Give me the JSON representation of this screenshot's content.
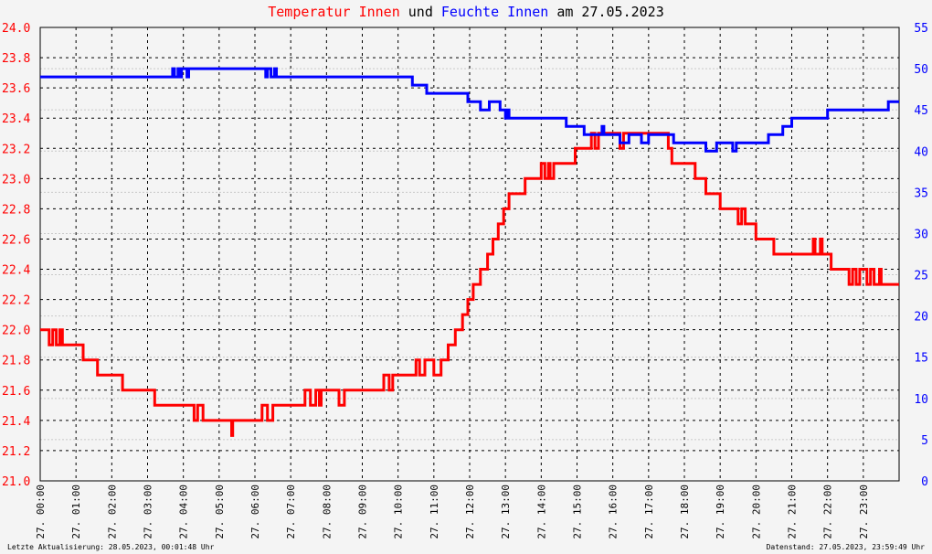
{
  "title": {
    "part1": "Temperatur Innen",
    "part2": " und ",
    "part3": "Feuchte Innen",
    "part4": " am 27.05.2023"
  },
  "colors": {
    "temperature": "#ff0000",
    "humidity": "#0000ff",
    "background": "#f4f4f4",
    "grid": "#000000"
  },
  "footer": {
    "left": "Letzte Aktualisierung: 28.05.2023, 00:01:48 Uhr",
    "right": "Datenstand: 27.05.2023, 23:59:49 Uhr"
  },
  "chart_data": {
    "type": "line",
    "title": "Temperatur Innen und Feuchte Innen am 27.05.2023",
    "xlabel": "",
    "ylabel": "",
    "x_range_hours": [
      0,
      24
    ],
    "x_ticks": [
      "27. 00:00",
      "27. 01:00",
      "27. 02:00",
      "27. 03:00",
      "27. 04:00",
      "27. 05:00",
      "27. 06:00",
      "27. 07:00",
      "27. 08:00",
      "27. 09:00",
      "27. 10:00",
      "27. 11:00",
      "27. 12:00",
      "27. 13:00",
      "27. 14:00",
      "27. 15:00",
      "27. 16:00",
      "27. 17:00",
      "27. 18:00",
      "27. 19:00",
      "27. 20:00",
      "27. 21:00",
      "27. 22:00",
      "27. 23:00"
    ],
    "y_left": {
      "range": [
        21.0,
        24.0
      ],
      "ticks": [
        "21.0",
        "21.2",
        "21.4",
        "21.6",
        "21.8",
        "22.0",
        "22.2",
        "22.4",
        "22.6",
        "22.8",
        "23.0",
        "23.2",
        "23.4",
        "23.6",
        "23.8",
        "24.0"
      ]
    },
    "y_right": {
      "range": [
        0,
        55
      ],
      "ticks": [
        "0",
        "5",
        "10",
        "15",
        "20",
        "25",
        "30",
        "35",
        "40",
        "45",
        "50",
        "55"
      ]
    },
    "grid": true,
    "series": [
      {
        "axis": "left",
        "points": [
          [
            0.0,
            22.0
          ],
          [
            0.25,
            22.0
          ],
          [
            0.25,
            21.9
          ],
          [
            0.35,
            21.9
          ],
          [
            0.35,
            22.0
          ],
          [
            0.45,
            22.0
          ],
          [
            0.45,
            21.9
          ],
          [
            0.55,
            21.9
          ],
          [
            0.55,
            22.0
          ],
          [
            0.62,
            22.0
          ],
          [
            0.62,
            21.9
          ],
          [
            1.2,
            21.9
          ],
          [
            1.2,
            21.8
          ],
          [
            1.6,
            21.8
          ],
          [
            1.6,
            21.7
          ],
          [
            2.3,
            21.7
          ],
          [
            2.3,
            21.6
          ],
          [
            3.2,
            21.6
          ],
          [
            3.2,
            21.5
          ],
          [
            4.3,
            21.5
          ],
          [
            4.3,
            21.4
          ],
          [
            4.4,
            21.4
          ],
          [
            4.4,
            21.5
          ],
          [
            4.55,
            21.5
          ],
          [
            4.55,
            21.4
          ],
          [
            5.35,
            21.4
          ],
          [
            5.35,
            21.3
          ],
          [
            5.38,
            21.3
          ],
          [
            5.38,
            21.4
          ],
          [
            6.2,
            21.4
          ],
          [
            6.2,
            21.5
          ],
          [
            6.35,
            21.5
          ],
          [
            6.35,
            21.4
          ],
          [
            6.5,
            21.4
          ],
          [
            6.5,
            21.5
          ],
          [
            7.4,
            21.5
          ],
          [
            7.4,
            21.6
          ],
          [
            7.55,
            21.6
          ],
          [
            7.55,
            21.5
          ],
          [
            7.7,
            21.5
          ],
          [
            7.7,
            21.6
          ],
          [
            7.8,
            21.6
          ],
          [
            7.8,
            21.5
          ],
          [
            7.85,
            21.5
          ],
          [
            7.85,
            21.6
          ],
          [
            8.35,
            21.6
          ],
          [
            8.35,
            21.5
          ],
          [
            8.5,
            21.5
          ],
          [
            8.5,
            21.6
          ],
          [
            9.6,
            21.6
          ],
          [
            9.6,
            21.7
          ],
          [
            9.75,
            21.7
          ],
          [
            9.75,
            21.6
          ],
          [
            9.85,
            21.6
          ],
          [
            9.85,
            21.7
          ],
          [
            10.5,
            21.7
          ],
          [
            10.5,
            21.8
          ],
          [
            10.6,
            21.8
          ],
          [
            10.6,
            21.7
          ],
          [
            10.75,
            21.7
          ],
          [
            10.75,
            21.8
          ],
          [
            11.0,
            21.8
          ],
          [
            11.0,
            21.7
          ],
          [
            11.2,
            21.7
          ],
          [
            11.2,
            21.8
          ],
          [
            11.4,
            21.8
          ],
          [
            11.4,
            21.9
          ],
          [
            11.6,
            21.9
          ],
          [
            11.6,
            22.0
          ],
          [
            11.8,
            22.0
          ],
          [
            11.8,
            22.1
          ],
          [
            11.95,
            22.1
          ],
          [
            11.95,
            22.2
          ],
          [
            12.1,
            22.2
          ],
          [
            12.1,
            22.3
          ],
          [
            12.3,
            22.3
          ],
          [
            12.3,
            22.4
          ],
          [
            12.5,
            22.4
          ],
          [
            12.5,
            22.5
          ],
          [
            12.65,
            22.5
          ],
          [
            12.65,
            22.6
          ],
          [
            12.8,
            22.6
          ],
          [
            12.8,
            22.7
          ],
          [
            12.95,
            22.7
          ],
          [
            12.95,
            22.8
          ],
          [
            13.1,
            22.8
          ],
          [
            13.1,
            22.9
          ],
          [
            13.55,
            22.9
          ],
          [
            13.55,
            23.0
          ],
          [
            14.0,
            23.0
          ],
          [
            14.0,
            23.1
          ],
          [
            14.1,
            23.1
          ],
          [
            14.1,
            23.0
          ],
          [
            14.2,
            23.0
          ],
          [
            14.2,
            23.1
          ],
          [
            14.25,
            23.1
          ],
          [
            14.25,
            23.0
          ],
          [
            14.35,
            23.0
          ],
          [
            14.35,
            23.1
          ],
          [
            14.95,
            23.1
          ],
          [
            14.95,
            23.2
          ],
          [
            15.4,
            23.2
          ],
          [
            15.4,
            23.3
          ],
          [
            15.5,
            23.3
          ],
          [
            15.5,
            23.2
          ],
          [
            15.6,
            23.2
          ],
          [
            15.6,
            23.3
          ],
          [
            16.2,
            23.3
          ],
          [
            16.2,
            23.2
          ],
          [
            16.3,
            23.2
          ],
          [
            16.3,
            23.3
          ],
          [
            17.55,
            23.3
          ],
          [
            17.55,
            23.2
          ],
          [
            17.65,
            23.2
          ],
          [
            17.65,
            23.1
          ],
          [
            18.3,
            23.1
          ],
          [
            18.3,
            23.0
          ],
          [
            18.6,
            23.0
          ],
          [
            18.6,
            22.9
          ],
          [
            19.0,
            22.9
          ],
          [
            19.0,
            22.8
          ],
          [
            19.5,
            22.8
          ],
          [
            19.5,
            22.7
          ],
          [
            19.6,
            22.7
          ],
          [
            19.6,
            22.8
          ],
          [
            19.7,
            22.8
          ],
          [
            19.7,
            22.7
          ],
          [
            20.0,
            22.7
          ],
          [
            20.0,
            22.6
          ],
          [
            20.5,
            22.6
          ],
          [
            20.5,
            22.5
          ],
          [
            21.6,
            22.5
          ],
          [
            21.6,
            22.6
          ],
          [
            21.65,
            22.6
          ],
          [
            21.65,
            22.5
          ],
          [
            21.8,
            22.5
          ],
          [
            21.8,
            22.6
          ],
          [
            21.85,
            22.6
          ],
          [
            21.85,
            22.5
          ],
          [
            22.1,
            22.5
          ],
          [
            22.1,
            22.4
          ],
          [
            22.6,
            22.4
          ],
          [
            22.6,
            22.3
          ],
          [
            22.7,
            22.3
          ],
          [
            22.7,
            22.4
          ],
          [
            22.8,
            22.4
          ],
          [
            22.8,
            22.3
          ],
          [
            22.9,
            22.3
          ],
          [
            22.9,
            22.4
          ],
          [
            23.1,
            22.4
          ],
          [
            23.1,
            22.3
          ],
          [
            23.2,
            22.3
          ],
          [
            23.2,
            22.4
          ],
          [
            23.3,
            22.4
          ],
          [
            23.3,
            22.3
          ],
          [
            23.45,
            22.3
          ],
          [
            23.45,
            22.4
          ],
          [
            23.5,
            22.4
          ],
          [
            23.5,
            22.3
          ],
          [
            24.0,
            22.3
          ]
        ]
      },
      {
        "axis": "right",
        "points": [
          [
            0.0,
            49
          ],
          [
            3.7,
            49
          ],
          [
            3.7,
            50
          ],
          [
            3.75,
            50
          ],
          [
            3.75,
            49
          ],
          [
            3.85,
            49
          ],
          [
            3.85,
            50
          ],
          [
            3.9,
            50
          ],
          [
            3.9,
            49
          ],
          [
            3.95,
            49
          ],
          [
            3.95,
            50
          ],
          [
            4.1,
            50
          ],
          [
            4.1,
            49
          ],
          [
            4.15,
            49
          ],
          [
            4.15,
            50
          ],
          [
            6.3,
            50
          ],
          [
            6.3,
            49
          ],
          [
            6.35,
            49
          ],
          [
            6.35,
            50
          ],
          [
            6.45,
            50
          ],
          [
            6.45,
            49
          ],
          [
            6.55,
            49
          ],
          [
            6.55,
            50
          ],
          [
            6.6,
            50
          ],
          [
            6.6,
            49
          ],
          [
            10.4,
            49
          ],
          [
            10.4,
            48
          ],
          [
            10.8,
            48
          ],
          [
            10.8,
            47
          ],
          [
            11.95,
            47
          ],
          [
            11.95,
            46
          ],
          [
            12.3,
            46
          ],
          [
            12.3,
            45
          ],
          [
            12.55,
            45
          ],
          [
            12.55,
            46
          ],
          [
            12.85,
            46
          ],
          [
            12.85,
            45
          ],
          [
            13.0,
            45
          ],
          [
            13.0,
            44
          ],
          [
            13.05,
            44
          ],
          [
            13.05,
            45
          ],
          [
            13.1,
            45
          ],
          [
            13.1,
            44
          ],
          [
            14.7,
            44
          ],
          [
            14.7,
            43
          ],
          [
            15.2,
            43
          ],
          [
            15.2,
            42
          ],
          [
            15.7,
            42
          ],
          [
            15.7,
            43
          ],
          [
            15.75,
            43
          ],
          [
            15.75,
            42
          ],
          [
            16.2,
            42
          ],
          [
            16.2,
            41
          ],
          [
            16.45,
            41
          ],
          [
            16.45,
            42
          ],
          [
            16.8,
            42
          ],
          [
            16.8,
            41
          ],
          [
            17.0,
            41
          ],
          [
            17.0,
            42
          ],
          [
            17.7,
            42
          ],
          [
            17.7,
            41
          ],
          [
            18.6,
            41
          ],
          [
            18.6,
            40
          ],
          [
            18.9,
            40
          ],
          [
            18.9,
            41
          ],
          [
            19.35,
            41
          ],
          [
            19.35,
            40
          ],
          [
            19.45,
            40
          ],
          [
            19.45,
            41
          ],
          [
            20.35,
            41
          ],
          [
            20.35,
            42
          ],
          [
            20.75,
            42
          ],
          [
            20.75,
            43
          ],
          [
            21.0,
            43
          ],
          [
            21.0,
            44
          ],
          [
            22.0,
            44
          ],
          [
            22.0,
            45
          ],
          [
            23.7,
            45
          ],
          [
            23.7,
            46
          ],
          [
            24.0,
            46
          ]
        ]
      }
    ]
  }
}
